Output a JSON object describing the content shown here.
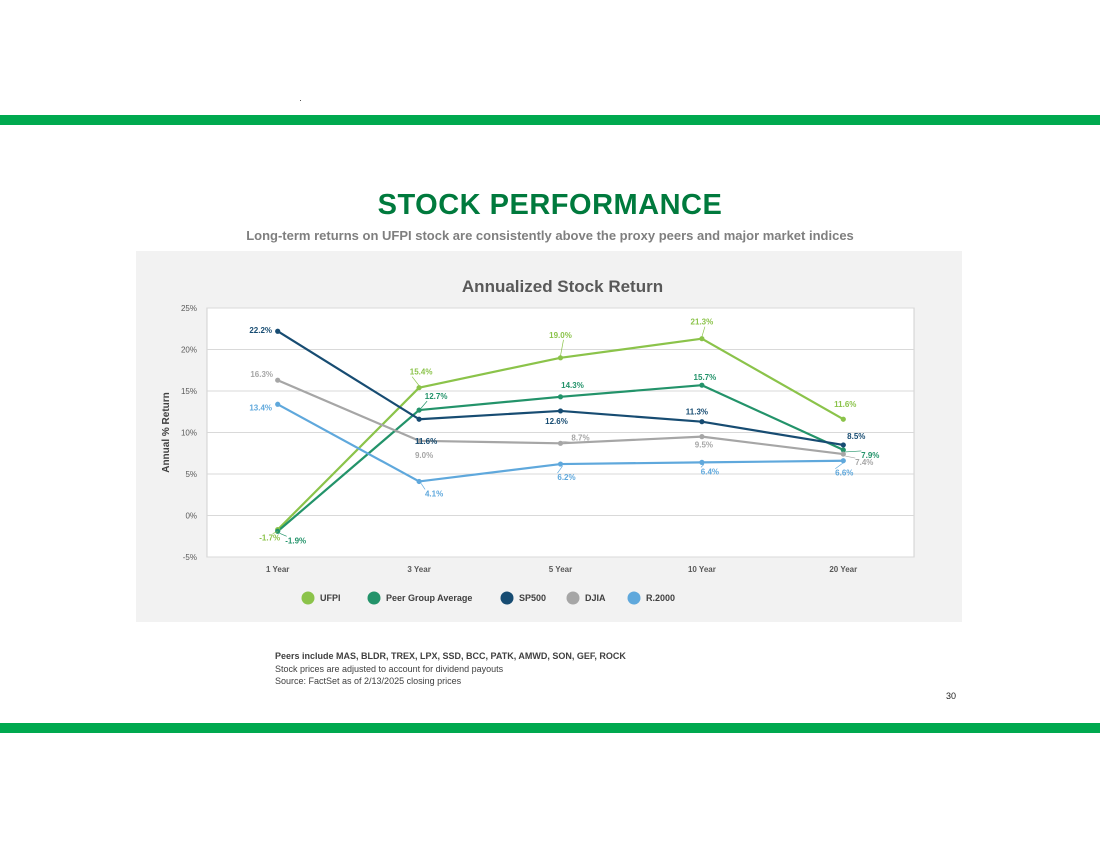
{
  "colors": {
    "band": "#00a94f",
    "title": "#007a3d",
    "ufpi": "#8bc34a",
    "peer": "#23936a",
    "sp500": "#174c72",
    "djia": "#a6a6a6",
    "r2000": "#5fa8dc"
  },
  "header": {
    "title": "STOCK PERFORMANCE",
    "subtitle": "Long-term returns on UFPI stock are consistently above the proxy peers and major market indices"
  },
  "chart_data": {
    "type": "line",
    "title": "Annualized Stock Return",
    "xlabel": "",
    "ylabel": "Annual % Return",
    "categories": [
      "1 Year",
      "3 Year",
      "5 Year",
      "10 Year",
      "20 Year"
    ],
    "ylim": [
      -5,
      25
    ],
    "yticks": [
      "-5%",
      "0%",
      "5%",
      "10%",
      "15%",
      "20%",
      "25%"
    ],
    "grid": true,
    "legend_position": "bottom",
    "series": [
      {
        "name": "UFPI",
        "color": "#8bc34a",
        "values": [
          -1.7,
          15.4,
          19.0,
          21.3,
          11.6
        ],
        "labels": [
          "-1.7%",
          "15.4%",
          "19.0%",
          "21.3%",
          "11.6%"
        ]
      },
      {
        "name": "Peer Group Average",
        "color": "#23936a",
        "values": [
          -1.9,
          12.7,
          14.3,
          15.7,
          7.9
        ],
        "labels": [
          "-1.9%",
          "12.7%",
          "14.3%",
          "15.7%",
          "7.9%"
        ]
      },
      {
        "name": "SP500",
        "color": "#174c72",
        "values": [
          22.2,
          11.6,
          12.6,
          11.3,
          8.5
        ],
        "labels": [
          "22.2%",
          "11.6%",
          "12.6%",
          "11.3%",
          "8.5%"
        ]
      },
      {
        "name": "DJIA",
        "color": "#a6a6a6",
        "values": [
          16.3,
          9.0,
          8.7,
          9.5,
          7.4
        ],
        "labels": [
          "16.3%",
          "9.0%",
          "8.7%",
          "9.5%",
          "7.4%"
        ]
      },
      {
        "name": "R.2000",
        "color": "#5fa8dc",
        "values": [
          13.4,
          4.1,
          6.2,
          6.4,
          6.6
        ],
        "labels": [
          "13.4%",
          "4.1%",
          "6.2%",
          "6.4%",
          "6.6%"
        ]
      }
    ]
  },
  "notes": {
    "peers": "Peers include MAS, BLDR, TREX, LPX, SSD, BCC, PATK, AMWD, SON, GEF, ROCK",
    "dividends": "Stock prices are adjusted to account for dividend payouts",
    "source": "Source: FactSet as of 2/13/2025 closing prices"
  },
  "page_number": "30"
}
